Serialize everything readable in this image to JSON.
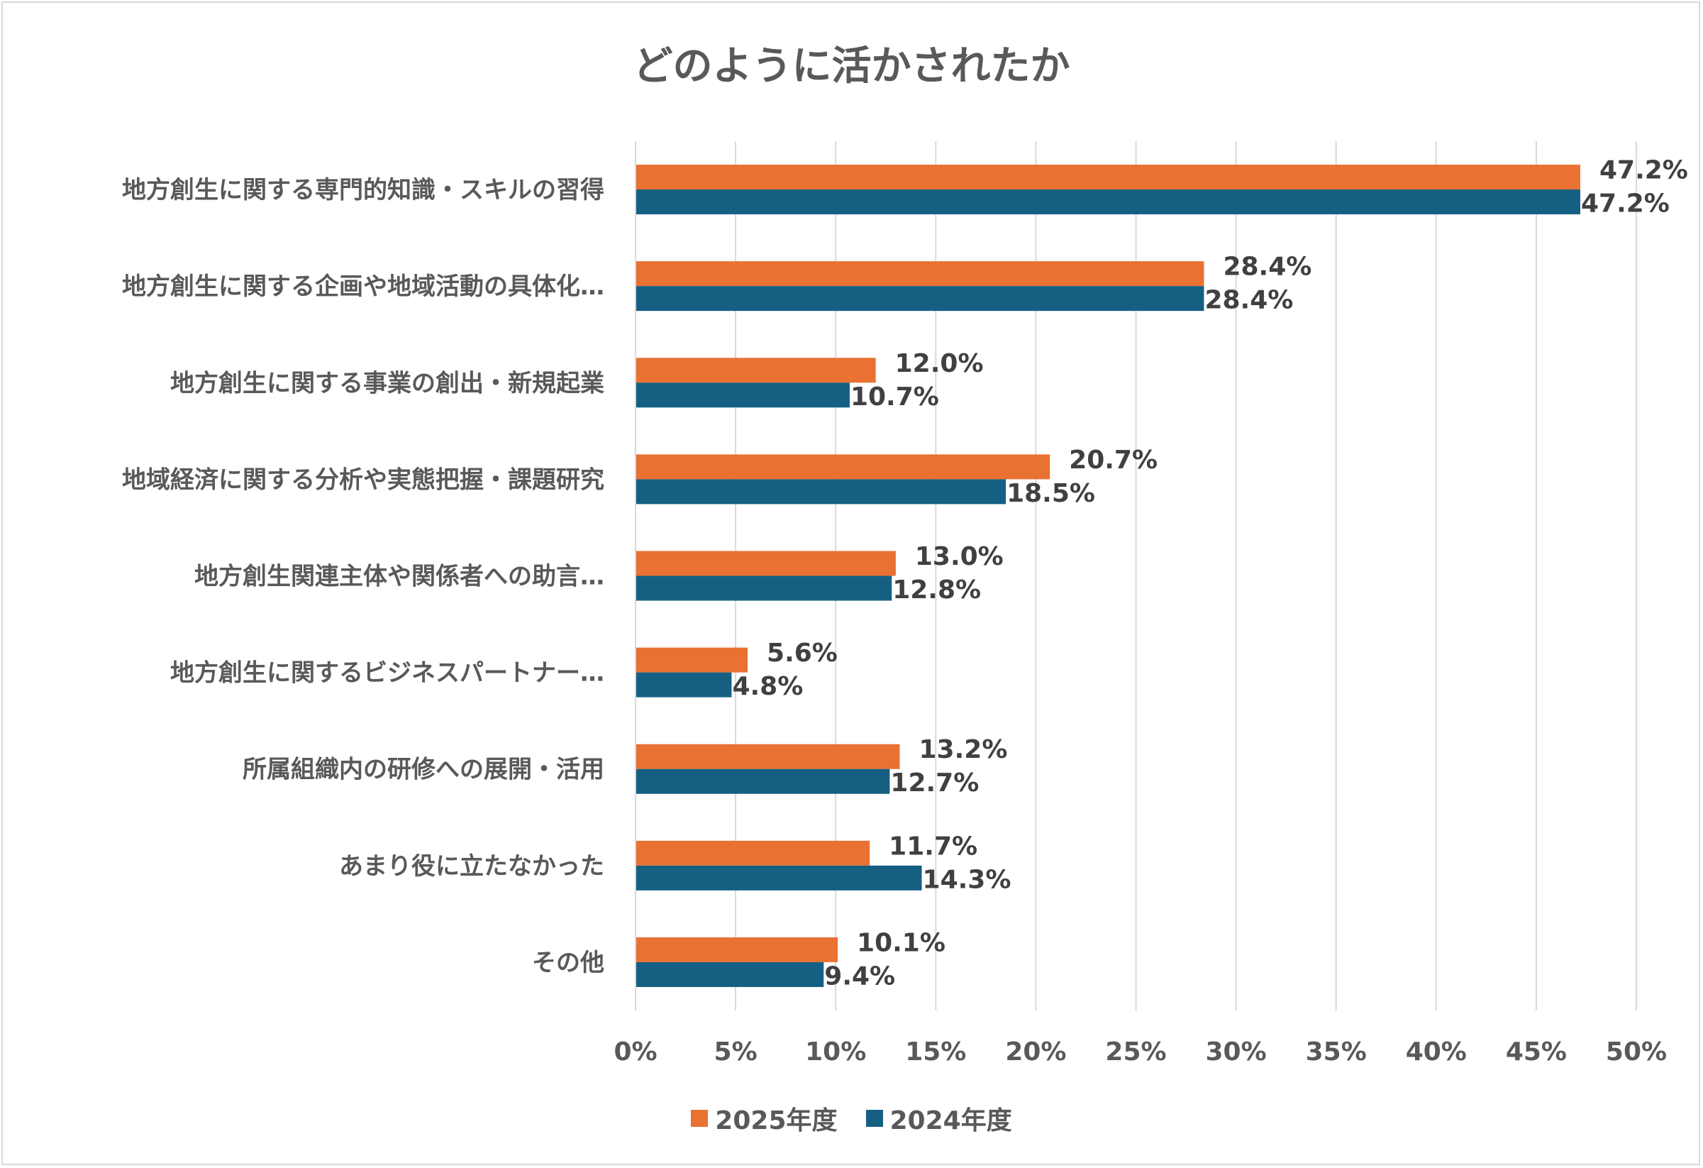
{
  "chart_data": {
    "type": "bar",
    "orientation": "horizontal",
    "title": "どのように活かされたか",
    "categories": [
      "地方創生に関する専門的知識・スキルの習得",
      "地方創生に関する企画や地域活動の具体化…",
      "地方創生に関する事業の創出・新規起業",
      "地域経済に関する分析や実態把握・課題研究",
      "地方創生関連主体や関係者への助言…",
      "地方創生に関するビジネスパートナー…",
      "所属組織内の研修への展開・活用",
      "あまり役に立たなかった",
      "その他"
    ],
    "series": [
      {
        "name": "2025年度",
        "color": "#E97132",
        "values": [
          47.2,
          28.4,
          12.0,
          20.7,
          13.0,
          5.6,
          13.2,
          11.7,
          10.1
        ]
      },
      {
        "name": "2024年度",
        "color": "#156082",
        "values": [
          47.2,
          28.4,
          10.7,
          18.5,
          12.8,
          4.8,
          12.7,
          14.3,
          9.4
        ]
      }
    ],
    "xlim": [
      0,
      50
    ],
    "xticks": [
      0,
      5,
      10,
      15,
      20,
      25,
      30,
      35,
      40,
      45,
      50
    ],
    "tick_suffix": "%",
    "grid": true,
    "legend_position": "bottom",
    "xlabel": "",
    "ylabel": ""
  }
}
